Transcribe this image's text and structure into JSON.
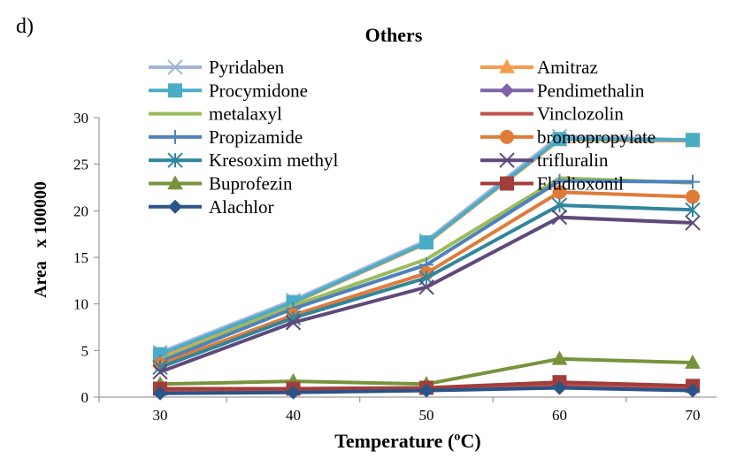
{
  "panel_label": "d)",
  "chart_data": {
    "type": "line",
    "title": "Others",
    "xlabel": "Temperature (ºC)",
    "ylabel": "Area   x 100000",
    "x": [
      30,
      40,
      50,
      60,
      70
    ],
    "xticks": [
      "30",
      "40",
      "50",
      "60",
      "70"
    ],
    "ylim": [
      0,
      30
    ],
    "yticks": [
      "0",
      "5",
      "10",
      "15",
      "20",
      "25",
      "30"
    ],
    "grid": false,
    "legend_position": "top (two columns, overlapping plot)",
    "series": [
      {
        "name": "Pyridaben",
        "marker": "x",
        "color": "#a3b6da",
        "values": [
          4.8,
          10.4,
          16.8,
          28.0,
          27.6
        ]
      },
      {
        "name": "Amitraz",
        "marker": "triangle",
        "color": "#f59b4c",
        "values": [
          4.4,
          10.1,
          16.5,
          27.6,
          27.5
        ]
      },
      {
        "name": "Procymidone",
        "marker": "square",
        "color": "#4bacc6",
        "values": [
          4.6,
          10.2,
          16.6,
          27.7,
          27.6
        ]
      },
      {
        "name": "Pendimethalin",
        "marker": "diamond",
        "color": "#7f63a6",
        "values": [
          0.5,
          0.6,
          0.8,
          1.0,
          0.8
        ]
      },
      {
        "name": "metalaxyl",
        "marker": "none",
        "color": "#9bbb59",
        "values": [
          4.0,
          9.8,
          14.8,
          23.5,
          23.0
        ]
      },
      {
        "name": "Vinclozolin",
        "marker": "none",
        "color": "#c0504d",
        "values": [
          0.7,
          0.8,
          0.9,
          1.3,
          1.0
        ]
      },
      {
        "name": "Propizamide",
        "marker": "plus",
        "color": "#4f81bd",
        "values": [
          3.8,
          9.5,
          14.2,
          23.2,
          23.1
        ]
      },
      {
        "name": "bromopropylate",
        "marker": "circle",
        "color": "#e07b39",
        "values": [
          3.5,
          8.8,
          13.3,
          22.0,
          21.5
        ]
      },
      {
        "name": "Kresoxim methyl",
        "marker": "asterisk",
        "color": "#31859c",
        "values": [
          3.2,
          8.5,
          12.8,
          20.6,
          20.1
        ]
      },
      {
        "name": "trifluralin",
        "marker": "x",
        "color": "#5f497a",
        "values": [
          2.7,
          8.0,
          11.8,
          19.3,
          18.7
        ]
      },
      {
        "name": "Buprofezin",
        "marker": "triangle",
        "color": "#77933c",
        "values": [
          1.4,
          1.7,
          1.4,
          4.1,
          3.7
        ]
      },
      {
        "name": "Fludioxonil",
        "marker": "square",
        "color": "#a33d3a",
        "values": [
          0.9,
          0.9,
          1.0,
          1.6,
          1.2
        ]
      },
      {
        "name": "Alachlor",
        "marker": "diamond",
        "color": "#2a5488",
        "values": [
          0.4,
          0.5,
          0.7,
          1.0,
          0.7
        ]
      }
    ]
  }
}
